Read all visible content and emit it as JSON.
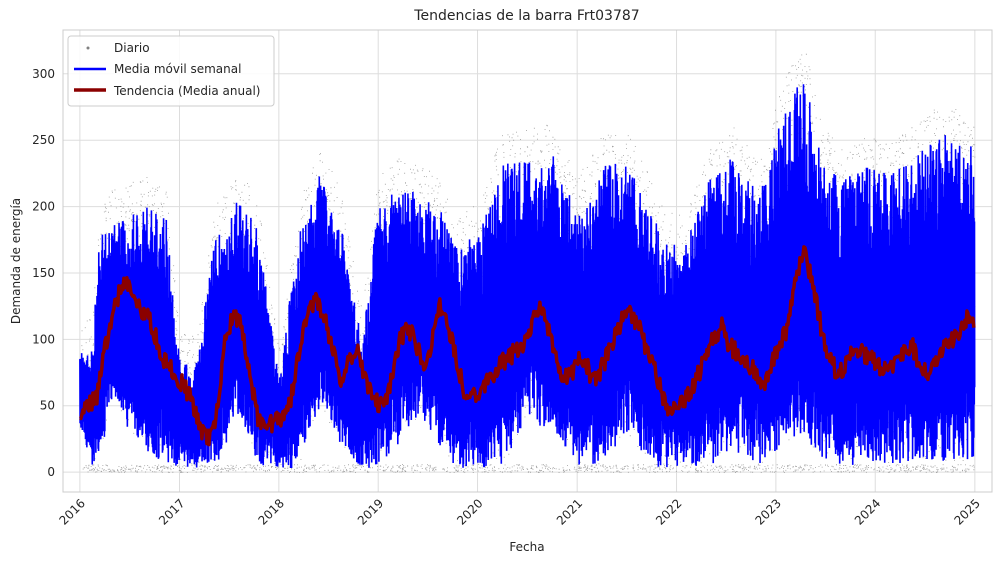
{
  "chart_data": {
    "type": "line",
    "title": "Tendencias de la barra Frt03787",
    "xlabel": "Fecha",
    "ylabel": "Demanda de energía",
    "xlim": [
      "2015-10-31",
      "2025-03-05"
    ],
    "ylim": [
      -15,
      333
    ],
    "x_ticks": [
      "2016",
      "2017",
      "2018",
      "2019",
      "2020",
      "2021",
      "2022",
      "2023",
      "2024",
      "2025"
    ],
    "y_ticks": [
      0,
      50,
      100,
      150,
      200,
      250,
      300
    ],
    "grid": true,
    "legend_position": "top-left",
    "series": [
      {
        "name": "Diario",
        "kind": "scatter",
        "color": "#808080",
        "description_points": "dense hourly scatter, ~0–315"
      },
      {
        "name": "Media móvil semanal",
        "kind": "line",
        "color": "#0000ff",
        "envelope": {
          "dates": [
            "2016-01-01",
            "2016-02-15",
            "2016-03-15",
            "2016-05-01",
            "2016-07-01",
            "2016-09-01",
            "2016-11-15",
            "2017-01-01",
            "2017-03-01",
            "2017-05-15",
            "2017-08-01",
            "2017-10-15",
            "2018-01-01",
            "2018-03-15",
            "2018-06-01",
            "2018-08-15",
            "2018-11-01",
            "2019-01-01",
            "2019-03-15",
            "2019-06-01",
            "2019-08-15",
            "2019-10-15",
            "2020-01-01",
            "2020-04-01",
            "2020-07-01",
            "2020-10-01",
            "2021-01-01",
            "2021-04-01",
            "2021-07-01",
            "2021-09-15",
            "2021-11-15",
            "2022-02-01",
            "2022-05-01",
            "2022-08-01",
            "2022-11-01",
            "2023-02-01",
            "2023-04-15",
            "2023-06-15",
            "2023-09-01",
            "2023-12-01",
            "2024-03-01",
            "2024-06-01",
            "2024-09-01",
            "2024-12-31"
          ],
          "upper": [
            90,
            95,
            180,
            190,
            195,
            200,
            190,
            85,
            80,
            180,
            205,
            185,
            70,
            180,
            225,
            190,
            100,
            200,
            215,
            210,
            200,
            170,
            180,
            235,
            235,
            240,
            200,
            230,
            235,
            205,
            175,
            170,
            220,
            240,
            210,
            275,
            300,
            240,
            220,
            230,
            225,
            240,
            255,
            245
          ],
          "lower": [
            35,
            5,
            10,
            60,
            30,
            15,
            5,
            3,
            3,
            5,
            40,
            5,
            3,
            3,
            50,
            20,
            3,
            3,
            20,
            45,
            20,
            3,
            3,
            5,
            40,
            30,
            5,
            5,
            30,
            5,
            3,
            3,
            5,
            15,
            5,
            20,
            25,
            10,
            5,
            5,
            5,
            10,
            5,
            10
          ]
        }
      },
      {
        "name": "Tendencia (Media anual)",
        "kind": "line",
        "color": "#8b0000",
        "dates": [
          "2016-01-01",
          "2016-02-01",
          "2016-03-01",
          "2016-03-20",
          "2016-04-15",
          "2016-05-15",
          "2016-06-15",
          "2016-07-15",
          "2016-08-15",
          "2016-09-15",
          "2016-10-15",
          "2016-11-15",
          "2016-12-15",
          "2017-01-15",
          "2017-02-15",
          "2017-03-15",
          "2017-04-15",
          "2017-05-15",
          "2017-06-15",
          "2017-07-15",
          "2017-08-15",
          "2017-09-15",
          "2017-10-15",
          "2017-11-15",
          "2017-12-15",
          "2018-01-15",
          "2018-02-15",
          "2018-03-15",
          "2018-04-15",
          "2018-05-15",
          "2018-06-15",
          "2018-07-15",
          "2018-08-15",
          "2018-09-15",
          "2018-10-15",
          "2018-11-15",
          "2018-12-15",
          "2019-01-15",
          "2019-02-15",
          "2019-03-15",
          "2019-04-15",
          "2019-05-15",
          "2019-06-15",
          "2019-07-15",
          "2019-08-15",
          "2019-09-15",
          "2019-10-15",
          "2019-11-15",
          "2019-12-15",
          "2020-01-15",
          "2020-02-15",
          "2020-03-15",
          "2020-04-15",
          "2020-05-15",
          "2020-06-15",
          "2020-07-15",
          "2020-08-15",
          "2020-09-15",
          "2020-10-15",
          "2020-11-15",
          "2020-12-15",
          "2021-01-15",
          "2021-02-15",
          "2021-03-15",
          "2021-04-15",
          "2021-05-15",
          "2021-06-15",
          "2021-07-15",
          "2021-08-15",
          "2021-09-15",
          "2021-10-15",
          "2021-11-15",
          "2021-12-15",
          "2022-01-15",
          "2022-02-15",
          "2022-03-15",
          "2022-04-15",
          "2022-05-15",
          "2022-06-15",
          "2022-07-15",
          "2022-08-15",
          "2022-09-15",
          "2022-10-15",
          "2022-11-15",
          "2022-12-15",
          "2023-01-15",
          "2023-02-15",
          "2023-03-15",
          "2023-04-15",
          "2023-05-15",
          "2023-06-15",
          "2023-07-15",
          "2023-08-15",
          "2023-09-15",
          "2023-10-15",
          "2023-11-15",
          "2023-12-15",
          "2024-01-15",
          "2024-02-15",
          "2024-03-15",
          "2024-04-15",
          "2024-05-15",
          "2024-06-15",
          "2024-07-15",
          "2024-08-15",
          "2024-09-15",
          "2024-10-15",
          "2024-11-15",
          "2024-12-15",
          "2024-12-31"
        ],
        "values": [
          45,
          52,
          55,
          80,
          105,
          130,
          145,
          135,
          120,
          115,
          95,
          80,
          75,
          65,
          55,
          35,
          25,
          40,
          95,
          120,
          110,
          75,
          40,
          35,
          38,
          42,
          55,
          90,
          120,
          130,
          120,
          95,
          70,
          85,
          95,
          70,
          55,
          50,
          65,
          95,
          110,
          100,
          80,
          95,
          125,
          110,
          85,
          60,
          55,
          65,
          70,
          80,
          85,
          90,
          95,
          110,
          125,
          110,
          85,
          70,
          75,
          90,
          75,
          70,
          85,
          100,
          115,
          120,
          110,
          90,
          75,
          55,
          45,
          50,
          60,
          70,
          85,
          100,
          110,
          95,
          90,
          85,
          75,
          65,
          80,
          95,
          110,
          150,
          165,
          145,
          110,
          85,
          75,
          80,
          95,
          90,
          85,
          80,
          75,
          85,
          90,
          95,
          80,
          75,
          85,
          95,
          100,
          110,
          120,
          110
        ]
      }
    ]
  }
}
